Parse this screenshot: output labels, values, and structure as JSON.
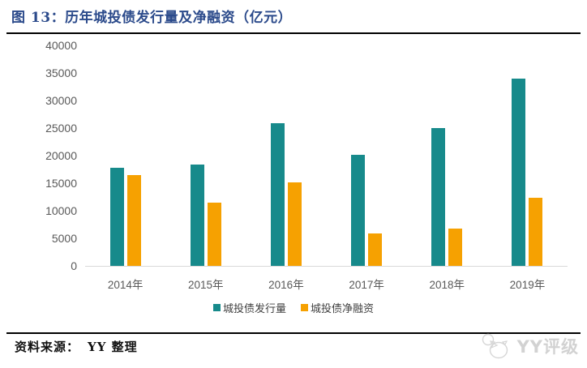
{
  "title": "图 13：历年城投债发行量及净融资（亿元）",
  "chart_data": {
    "type": "bar",
    "title": "图 13：历年城投债发行量及净融资（亿元）",
    "categories": [
      "2014年",
      "2015年",
      "2016年",
      "2017年",
      "2018年",
      "2019年"
    ],
    "series": [
      {
        "name": "城投债发行量",
        "color": "#178A8B",
        "values": [
          17800,
          18400,
          25900,
          20200,
          25000,
          34000
        ]
      },
      {
        "name": "城投债净融资",
        "color": "#F6A101",
        "values": [
          16400,
          11500,
          15200,
          5900,
          6800,
          12300
        ]
      }
    ],
    "xlabel": "",
    "ylabel": "",
    "ylim": [
      0,
      40000
    ],
    "yticks": [
      0,
      5000,
      10000,
      15000,
      20000,
      25000,
      30000,
      35000,
      40000
    ],
    "grid": false,
    "legend_position": "bottom-center"
  },
  "colors": {
    "title_text": "#2B4A8B",
    "rule": "#000000",
    "axis_text": "#595959",
    "axis_line": "#D9D9D9",
    "legend_text": "#404040",
    "watermark": "#D2D2D2"
  },
  "footer": {
    "source_label": "资料来源：",
    "source_value": "YY 整理"
  },
  "watermark": {
    "icon": "yy-mascot-icon",
    "text": "YY评级"
  }
}
